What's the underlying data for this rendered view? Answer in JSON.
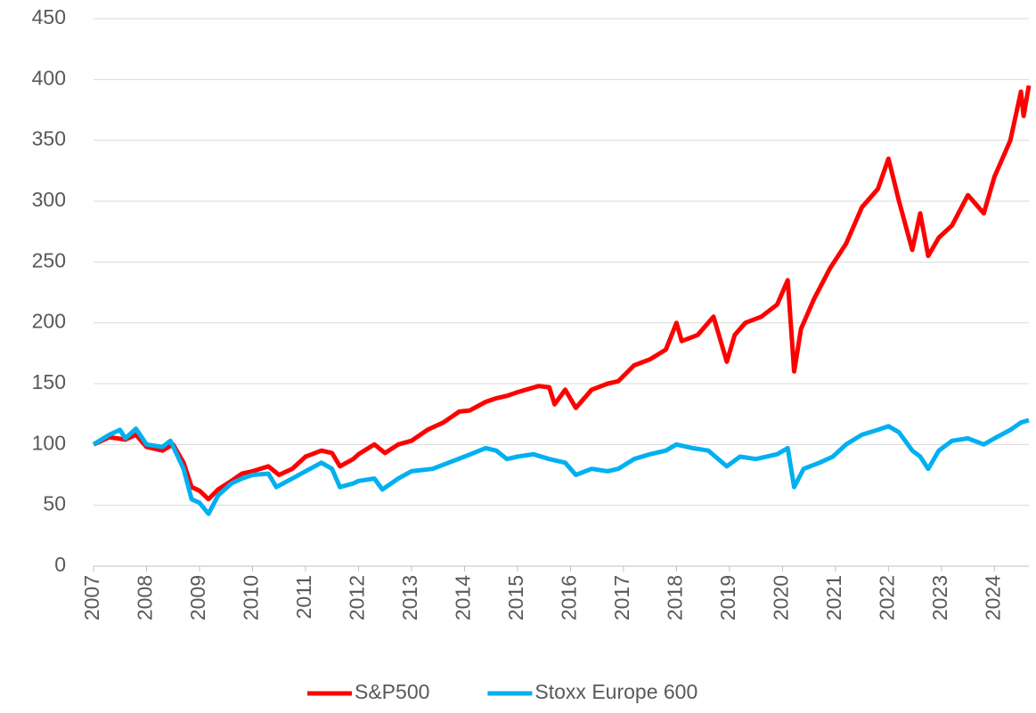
{
  "chart_data": {
    "type": "line",
    "xlim": [
      2007,
      2024.65
    ],
    "xticks": [
      2007,
      2008,
      2009,
      2010,
      2011,
      2012,
      2013,
      2014,
      2015,
      2016,
      2017,
      2018,
      2019,
      2020,
      2021,
      2022,
      2023,
      2024
    ],
    "ylim": [
      0,
      450
    ],
    "yticks": [
      0,
      50,
      100,
      150,
      200,
      250,
      300,
      350,
      400,
      450
    ],
    "grid": true,
    "legend": "bottom",
    "series": [
      {
        "name": "S&P500",
        "color": "#ff0000",
        "x": [
          2007.0,
          2007.3,
          2007.6,
          2007.8,
          2008.0,
          2008.3,
          2008.5,
          2008.7,
          2008.85,
          2009.0,
          2009.17,
          2009.35,
          2009.6,
          2009.8,
          2010.0,
          2010.3,
          2010.5,
          2010.75,
          2011.0,
          2011.3,
          2011.5,
          2011.65,
          2011.9,
          2012.0,
          2012.3,
          2012.5,
          2012.75,
          2013.0,
          2013.3,
          2013.6,
          2013.9,
          2014.1,
          2014.4,
          2014.6,
          2014.8,
          2015.0,
          2015.4,
          2015.6,
          2015.7,
          2015.9,
          2016.1,
          2016.4,
          2016.7,
          2016.9,
          2017.2,
          2017.5,
          2017.8,
          2018.0,
          2018.1,
          2018.4,
          2018.7,
          2018.95,
          2019.1,
          2019.3,
          2019.6,
          2019.9,
          2020.1,
          2020.22,
          2020.35,
          2020.6,
          2020.9,
          2021.2,
          2021.5,
          2021.8,
          2022.0,
          2022.2,
          2022.45,
          2022.6,
          2022.75,
          2022.95,
          2023.2,
          2023.5,
          2023.8,
          2024.0,
          2024.3,
          2024.5,
          2024.55,
          2024.65
        ],
        "values": [
          100,
          106,
          104,
          108,
          98,
          95,
          100,
          85,
          65,
          62,
          55,
          63,
          70,
          76,
          78,
          82,
          75,
          80,
          90,
          95,
          93,
          82,
          88,
          92,
          100,
          93,
          100,
          103,
          112,
          118,
          127,
          128,
          135,
          138,
          140,
          143,
          148,
          147,
          133,
          145,
          130,
          145,
          150,
          152,
          165,
          170,
          178,
          200,
          185,
          190,
          205,
          168,
          190,
          200,
          205,
          215,
          235,
          160,
          195,
          220,
          245,
          265,
          295,
          310,
          335,
          300,
          260,
          290,
          255,
          270,
          280,
          305,
          290,
          320,
          350,
          390,
          370,
          395
        ]
      },
      {
        "name": "Stoxx Europe 600",
        "color": "#00b0f0",
        "x": [
          2007.0,
          2007.3,
          2007.5,
          2007.6,
          2007.8,
          2008.0,
          2008.3,
          2008.45,
          2008.7,
          2008.85,
          2009.0,
          2009.17,
          2009.35,
          2009.6,
          2009.8,
          2010.0,
          2010.3,
          2010.45,
          2010.75,
          2011.0,
          2011.3,
          2011.5,
          2011.65,
          2011.9,
          2012.0,
          2012.3,
          2012.45,
          2012.75,
          2013.0,
          2013.4,
          2013.7,
          2014.0,
          2014.4,
          2014.6,
          2014.8,
          2015.0,
          2015.3,
          2015.6,
          2015.9,
          2016.1,
          2016.4,
          2016.7,
          2016.9,
          2017.2,
          2017.5,
          2017.8,
          2018.0,
          2018.3,
          2018.6,
          2018.95,
          2019.2,
          2019.5,
          2019.9,
          2020.1,
          2020.22,
          2020.4,
          2020.7,
          2020.95,
          2021.2,
          2021.5,
          2021.8,
          2022.0,
          2022.2,
          2022.45,
          2022.6,
          2022.75,
          2022.95,
          2023.2,
          2023.5,
          2023.8,
          2024.0,
          2024.3,
          2024.5,
          2024.65
        ],
        "values": [
          100,
          108,
          112,
          105,
          113,
          100,
          98,
          103,
          80,
          55,
          52,
          43,
          58,
          68,
          72,
          75,
          76,
          65,
          72,
          78,
          85,
          80,
          65,
          68,
          70,
          72,
          63,
          72,
          78,
          80,
          85,
          90,
          97,
          95,
          88,
          90,
          92,
          88,
          85,
          75,
          80,
          78,
          80,
          88,
          92,
          95,
          100,
          97,
          95,
          82,
          90,
          88,
          92,
          97,
          65,
          80,
          85,
          90,
          100,
          108,
          112,
          115,
          110,
          95,
          90,
          80,
          95,
          103,
          105,
          100,
          105,
          112,
          118,
          120
        ]
      }
    ]
  }
}
